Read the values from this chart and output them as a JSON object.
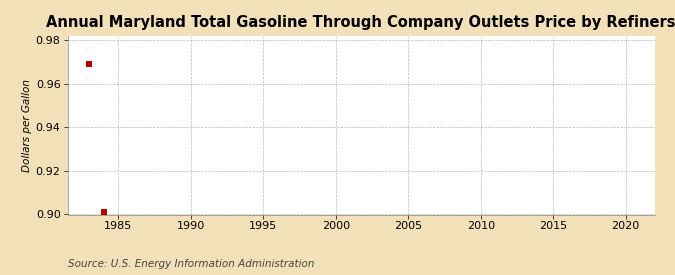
{
  "title": "Annual Maryland Total Gasoline Through Company Outlets Price by Refiners",
  "ylabel": "Dollars per Gallon",
  "source": "Source: U.S. Energy Information Administration",
  "x_data": [
    1983,
    1984
  ],
  "y_data": [
    0.969,
    0.901
  ],
  "marker_color": "#bb0000",
  "marker_size": 16,
  "xlim": [
    1981.5,
    2022
  ],
  "ylim": [
    0.9,
    0.982
  ],
  "xticks": [
    1985,
    1990,
    1995,
    2000,
    2005,
    2010,
    2015,
    2020
  ],
  "yticks": [
    0.9,
    0.92,
    0.94,
    0.96,
    0.98
  ],
  "background_color": "#f2e0b8",
  "plot_background_color": "#ffffff",
  "grid_color": "#999999",
  "title_fontsize": 10.5,
  "axis_label_fontsize": 7.5,
  "tick_fontsize": 8,
  "source_fontsize": 7.5
}
